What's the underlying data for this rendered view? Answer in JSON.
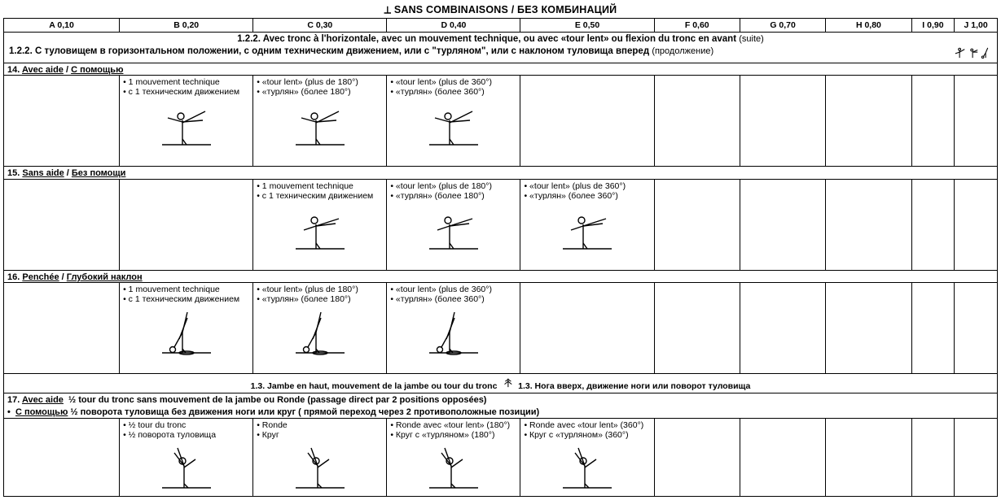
{
  "page_title": "⟂  SANS COMBINAISONS / БЕЗ КОМБИНАЦИЙ",
  "columns": [
    {
      "id": "A",
      "label": "A  0,10"
    },
    {
      "id": "B",
      "label": "B  0,20"
    },
    {
      "id": "C",
      "label": "C  0,30"
    },
    {
      "id": "D",
      "label": "D  0,40"
    },
    {
      "id": "E",
      "label": "E  0,50"
    },
    {
      "id": "F",
      "label": "F  0,60"
    },
    {
      "id": "G",
      "label": "G 0,70"
    },
    {
      "id": "H",
      "label": "H 0,80"
    },
    {
      "id": "I",
      "label": "I 0,90"
    },
    {
      "id": "J",
      "label": "J 1,00"
    }
  ],
  "section_122": {
    "fr": "1.2.2. Avec tronc à l'horizontale, avec un mouvement technique, ou avec «tour lent» ou flexion du tronc en avant",
    "fr_suffix": "(suite)",
    "ru": "1.2.2. С туловищем в горизонтальном положении, с одним техническим движением, или c  \"турляном\", или с наклоном туловища вперед",
    "ru_suffix": "(продолжение)"
  },
  "rows_122": [
    {
      "num": "14.",
      "title_fr": "Avec aide",
      "title_ru": "С помощью",
      "cells": {
        "B": [
          "• 1 mouvement technique",
          "• с 1 техническим движением"
        ],
        "C": [
          "• «tour lent» (plus de 180°)",
          "• «турлян» (более 180°)"
        ],
        "D": [
          "• «tour lent» (plus de 360°)",
          "• «турлян» (более 360°)"
        ]
      },
      "fig_cols": [
        "B",
        "C",
        "D"
      ],
      "fig": "arabesque-hold"
    },
    {
      "num": "15.",
      "title_fr": "Sans aide",
      "title_ru": "Без помощи",
      "cells": {
        "C": [
          "• 1 mouvement technique",
          "• с 1 техническим движением"
        ],
        "D": [
          "• «tour lent» (plus de 180°)",
          "• «турлян»  (более 180°)"
        ],
        "E": [
          "• «tour lent» (plus de 360°)",
          "• «турлян» (более 360°)"
        ]
      },
      "fig_cols": [
        "C",
        "D",
        "E"
      ],
      "fig": "arabesque-free"
    },
    {
      "num": "16.",
      "title_fr": "Penchée",
      "title_ru": "Глубокий наклон",
      "cells": {
        "B": [
          "• 1 mouvement technique",
          "• с 1 техническим движением"
        ],
        "C": [
          "• «tour lent» (plus de 180°)",
          "• «турлян»  (более 180°)"
        ],
        "D": [
          "• «tour lent» (plus de 360°)",
          "• «турлян» (более 360°)"
        ]
      },
      "fig_cols": [
        "B",
        "C",
        "D"
      ],
      "fig": "penche"
    }
  ],
  "section_13": {
    "fr": "1.3. Jambe en haut, mouvement de la jambe ou tour du tronc",
    "ru": "1.3. Нога вверх, движение ноги или поворот туловища"
  },
  "row_17": {
    "num": "17.",
    "title_fr": "Avec aide",
    "line1_fr": "½ tour du tronc sans mouvement de la jambe ou Ronde (passage direct par 2 positions opposées)",
    "title_ru": "С помощью",
    "line1_ru": "½ поворота туловища без движения ноги или круг ( прямой переход через 2 противоположные позиции)",
    "cells": {
      "B": [
        "• ½ tour du tronc",
        "• ½ поворота туловища"
      ],
      "C": [
        "• Ronde",
        "• Круг"
      ],
      "D": [
        "• Ronde avec «tour lent» (180°)",
        "• Круг с «турляном» (180°)"
      ],
      "E": [
        "• Ronde avec «tour lent» (360°)",
        "• Круг с «турляном»  (360°)"
      ]
    },
    "fig_cols": [
      "B",
      "C",
      "D",
      "E"
    ],
    "fig": "legup"
  },
  "svg": {
    "width": 70,
    "height": 58,
    "stroke": "#000",
    "stroke_width": 1.4
  }
}
